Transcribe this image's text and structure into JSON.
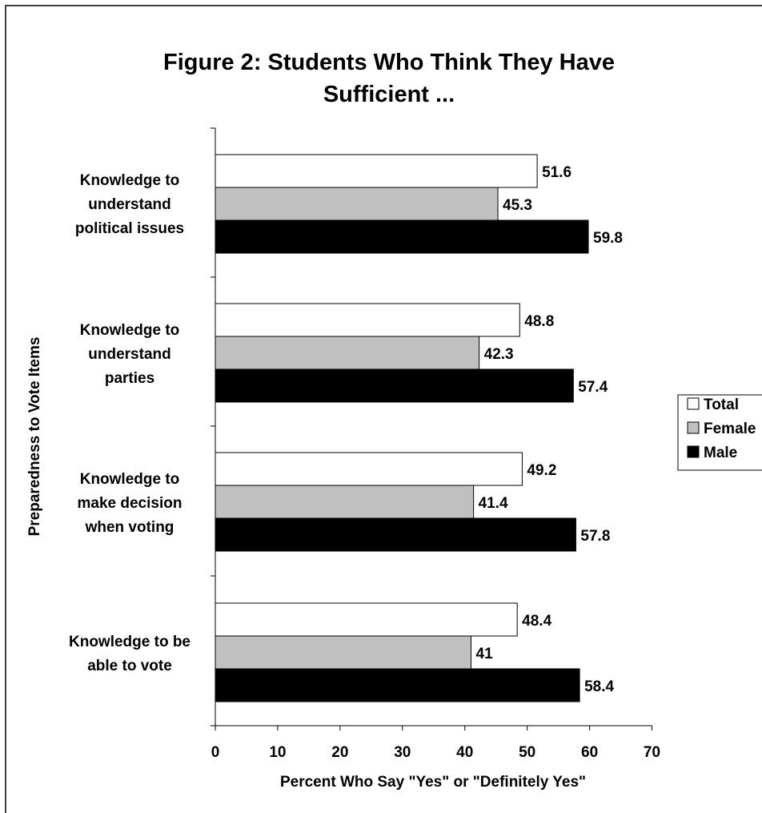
{
  "chart_data": {
    "type": "bar",
    "orientation": "horizontal",
    "title": "Figure 2: Students Who Think They Have Sufficient ...",
    "title_lines": [
      "Figure 2: Students Who Think They Have",
      "Sufficient ..."
    ],
    "xlabel": "Percent Who Say \"Yes\" or \"Definitely Yes\"",
    "ylabel": "Preparedness to Vote Items",
    "xlim": [
      0,
      70
    ],
    "xticks": [
      0,
      10,
      20,
      30,
      40,
      50,
      60,
      70
    ],
    "grid": false,
    "legend_position": "right",
    "categories": [
      "Knowledge to understand political issues",
      "Knowledge to understand parties",
      "Knowledge to make decision when voting",
      "Knowledge to be able to vote"
    ],
    "category_lines": [
      [
        "Knowledge to",
        "understand",
        "political  issues"
      ],
      [
        "Knowledge to",
        "understand",
        "parties"
      ],
      [
        "Knowledge to",
        "make decision",
        "when voting"
      ],
      [
        "Knowledge to be",
        "able to vote"
      ]
    ],
    "series": [
      {
        "name": "Total",
        "color": "#ffffff",
        "values": [
          51.6,
          48.8,
          49.2,
          48.4
        ],
        "labels": [
          "51.6",
          "48.8",
          "49.2",
          "48.4"
        ]
      },
      {
        "name": "Female",
        "color": "#c0c0c0",
        "values": [
          45.3,
          42.3,
          41.4,
          41
        ],
        "labels": [
          "45.3",
          "42.3",
          "41.4",
          "41"
        ]
      },
      {
        "name": "Male",
        "color": "#000000",
        "values": [
          59.8,
          57.4,
          57.8,
          58.4
        ],
        "labels": [
          "59.8",
          "57.4",
          "57.8",
          "58.4"
        ]
      }
    ]
  }
}
